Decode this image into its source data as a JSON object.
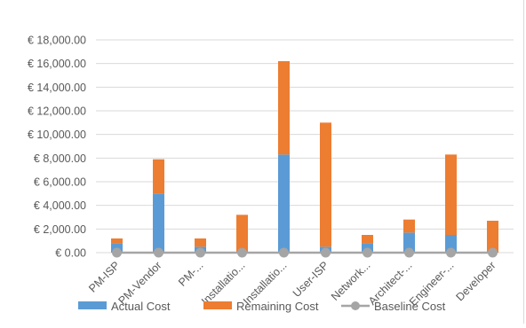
{
  "chart_data": {
    "type": "bar",
    "stacked": true,
    "categories": [
      "PM-ISP",
      "PM-Vendor",
      "PM-...",
      "Installatio...",
      "Installatio...",
      "User-ISP",
      "Network...",
      "Architect-...",
      "Engineer-...",
      "Developer"
    ],
    "series": [
      {
        "name": "Actual Cost",
        "color": "#5b9bd5",
        "values": [
          800,
          5000,
          500,
          0,
          8300,
          500,
          800,
          1700,
          1500,
          0
        ]
      },
      {
        "name": "Remaining Cost",
        "color": "#ed7d31",
        "values": [
          400,
          2900,
          700,
          3200,
          7900,
          10500,
          700,
          1100,
          6800,
          2700
        ]
      },
      {
        "name": "Baseline Cost",
        "color": "#a5a5a5",
        "type": "line",
        "values": [
          0,
          0,
          0,
          0,
          0,
          0,
          0,
          0,
          0,
          0
        ]
      }
    ],
    "ylim": [
      0,
      18000
    ],
    "yticks": [
      "€ 0.00",
      "€ 2,000.00",
      "€ 4,000.00",
      "€ 6,000.00",
      "€ 8,000.00",
      "€ 10,000.00",
      "€ 12,000.00",
      "€ 14,000.00",
      "€ 16,000.00",
      "€ 18,000.00"
    ],
    "ytick_values": [
      0,
      2000,
      4000,
      6000,
      8000,
      10000,
      12000,
      14000,
      16000,
      18000
    ],
    "grid": true,
    "legend": "bottom",
    "title": "",
    "xlabel": "",
    "ylabel": ""
  }
}
